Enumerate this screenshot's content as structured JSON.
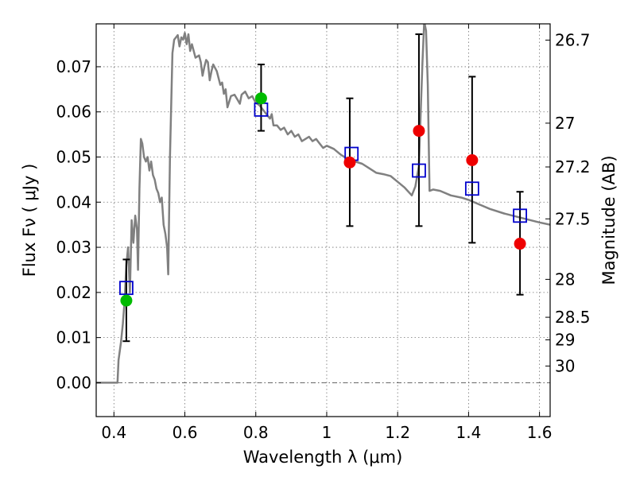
{
  "chart_data": {
    "type": "scatter",
    "xlabel": "Wavelength  λ (μm)",
    "ylabel": "Flux  Fν  ( μJy )",
    "y2label": "Magnitude (AB)",
    "xlim": [
      0.35,
      1.63
    ],
    "ylim": [
      -0.0075,
      0.0795
    ],
    "xticks": [
      0.4,
      0.6,
      0.8,
      1.0,
      1.2,
      1.4,
      1.6
    ],
    "xtick_labels": [
      "0.4",
      "0.6",
      "0.8",
      "1",
      "1.2",
      "1.4",
      "1.6"
    ],
    "yticks": [
      0.0,
      0.01,
      0.02,
      0.03,
      0.04,
      0.05,
      0.06,
      0.07
    ],
    "ytick_labels": [
      "0.00",
      "0.01",
      "0.02",
      "0.03",
      "0.04",
      "0.05",
      "0.06",
      "0.07"
    ],
    "y2ticks": [
      {
        "label": "26.7",
        "flux": 0.0759
      },
      {
        "label": "27",
        "flux": 0.0575
      },
      {
        "label": "27.2",
        "flux": 0.0478
      },
      {
        "label": "27.5",
        "flux": 0.0363
      },
      {
        "label": "28",
        "flux": 0.0229
      },
      {
        "label": "28.5",
        "flux": 0.0145
      },
      {
        "label": "29",
        "flux": 0.0095
      },
      {
        "label": "30",
        "flux": 0.0037
      }
    ],
    "grid": true,
    "colors": {
      "model": "#808080",
      "model_points": "#0000cc",
      "observed_detected": "#00bb00",
      "observed_other": "#ee0000",
      "errorbar": "#000000",
      "zero_line": "#555555"
    },
    "series": [
      {
        "kind": "line",
        "points": [
          [
            0.35,
            0.0
          ],
          [
            0.41,
            0.0
          ],
          [
            0.413,
            0.005
          ],
          [
            0.42,
            0.009
          ],
          [
            0.425,
            0.013
          ],
          [
            0.43,
            0.018
          ],
          [
            0.435,
            0.026
          ],
          [
            0.44,
            0.03
          ],
          [
            0.445,
            0.02
          ],
          [
            0.45,
            0.036
          ],
          [
            0.455,
            0.031
          ],
          [
            0.46,
            0.037
          ],
          [
            0.465,
            0.034
          ],
          [
            0.468,
            0.025
          ],
          [
            0.472,
            0.043
          ],
          [
            0.476,
            0.054
          ],
          [
            0.48,
            0.053
          ],
          [
            0.485,
            0.05
          ],
          [
            0.49,
            0.049
          ],
          [
            0.495,
            0.05
          ],
          [
            0.5,
            0.047
          ],
          [
            0.505,
            0.049
          ],
          [
            0.51,
            0.046
          ],
          [
            0.515,
            0.045
          ],
          [
            0.52,
            0.043
          ],
          [
            0.525,
            0.042
          ],
          [
            0.53,
            0.04
          ],
          [
            0.535,
            0.041
          ],
          [
            0.54,
            0.035
          ],
          [
            0.545,
            0.033
          ],
          [
            0.55,
            0.03
          ],
          [
            0.553,
            0.024
          ],
          [
            0.558,
            0.05
          ],
          [
            0.565,
            0.073
          ],
          [
            0.57,
            0.076
          ],
          [
            0.575,
            0.0765
          ],
          [
            0.58,
            0.077
          ],
          [
            0.585,
            0.0745
          ],
          [
            0.59,
            0.0765
          ],
          [
            0.595,
            0.076
          ],
          [
            0.6,
            0.0775
          ],
          [
            0.605,
            0.075
          ],
          [
            0.61,
            0.0772
          ],
          [
            0.615,
            0.0735
          ],
          [
            0.62,
            0.075
          ],
          [
            0.63,
            0.072
          ],
          [
            0.64,
            0.0725
          ],
          [
            0.645,
            0.071
          ],
          [
            0.65,
            0.068
          ],
          [
            0.655,
            0.07
          ],
          [
            0.66,
            0.0715
          ],
          [
            0.665,
            0.071
          ],
          [
            0.67,
            0.067
          ],
          [
            0.675,
            0.069
          ],
          [
            0.68,
            0.0705
          ],
          [
            0.69,
            0.069
          ],
          [
            0.7,
            0.066
          ],
          [
            0.705,
            0.0665
          ],
          [
            0.71,
            0.064
          ],
          [
            0.715,
            0.065
          ],
          [
            0.72,
            0.061
          ],
          [
            0.73,
            0.0635
          ],
          [
            0.74,
            0.0638
          ],
          [
            0.75,
            0.0625
          ],
          [
            0.755,
            0.0618
          ],
          [
            0.76,
            0.0638
          ],
          [
            0.77,
            0.0645
          ],
          [
            0.78,
            0.063
          ],
          [
            0.79,
            0.0635
          ],
          [
            0.8,
            0.062
          ],
          [
            0.81,
            0.0615
          ],
          [
            0.82,
            0.0605
          ],
          [
            0.83,
            0.0595
          ],
          [
            0.84,
            0.0585
          ],
          [
            0.845,
            0.0595
          ],
          [
            0.85,
            0.057
          ],
          [
            0.86,
            0.057
          ],
          [
            0.87,
            0.056
          ],
          [
            0.88,
            0.0565
          ],
          [
            0.89,
            0.055
          ],
          [
            0.9,
            0.0558
          ],
          [
            0.91,
            0.0545
          ],
          [
            0.92,
            0.055
          ],
          [
            0.93,
            0.0535
          ],
          [
            0.94,
            0.054
          ],
          [
            0.95,
            0.0545
          ],
          [
            0.96,
            0.0535
          ],
          [
            0.97,
            0.054
          ],
          [
            0.98,
            0.053
          ],
          [
            0.99,
            0.052
          ],
          [
            1.0,
            0.0525
          ],
          [
            1.02,
            0.0518
          ],
          [
            1.04,
            0.0505
          ],
          [
            1.06,
            0.0495
          ],
          [
            1.08,
            0.049
          ],
          [
            1.1,
            0.0485
          ],
          [
            1.12,
            0.0475
          ],
          [
            1.14,
            0.0465
          ],
          [
            1.16,
            0.0462
          ],
          [
            1.18,
            0.0458
          ],
          [
            1.2,
            0.0445
          ],
          [
            1.22,
            0.0432
          ],
          [
            1.24,
            0.0415
          ],
          [
            1.25,
            0.0435
          ],
          [
            1.26,
            0.048
          ],
          [
            1.265,
            0.06
          ],
          [
            1.27,
            0.071
          ],
          [
            1.275,
            0.08
          ],
          [
            1.28,
            0.078
          ],
          [
            1.285,
            0.066
          ],
          [
            1.29,
            0.0425
          ],
          [
            1.3,
            0.0428
          ],
          [
            1.32,
            0.0425
          ],
          [
            1.35,
            0.0415
          ],
          [
            1.38,
            0.041
          ],
          [
            1.4,
            0.0405
          ],
          [
            1.43,
            0.0395
          ],
          [
            1.46,
            0.0385
          ],
          [
            1.5,
            0.0375
          ],
          [
            1.55,
            0.0365
          ],
          [
            1.6,
            0.0355
          ],
          [
            1.63,
            0.035
          ]
        ]
      },
      {
        "kind": "model-points",
        "points": [
          [
            0.435,
            0.021
          ],
          [
            0.815,
            0.0605
          ],
          [
            1.07,
            0.0507
          ],
          [
            1.26,
            0.047
          ],
          [
            1.41,
            0.043
          ],
          [
            1.545,
            0.037
          ]
        ]
      },
      {
        "kind": "observed",
        "points": [
          {
            "x": 0.435,
            "y": 0.0182,
            "err_low": 0.0092,
            "err_high": 0.0273,
            "detected": true
          },
          {
            "x": 0.815,
            "y": 0.063,
            "err_low": 0.0558,
            "err_high": 0.0705,
            "detected": true
          },
          {
            "x": 1.065,
            "y": 0.0488,
            "err_low": 0.0347,
            "err_high": 0.063,
            "detected": false
          },
          {
            "x": 1.26,
            "y": 0.0558,
            "err_low": 0.0347,
            "err_high": 0.0772,
            "detected": false
          },
          {
            "x": 1.41,
            "y": 0.0493,
            "err_low": 0.031,
            "err_high": 0.0678,
            "detected": false
          },
          {
            "x": 1.545,
            "y": 0.0308,
            "err_low": 0.0195,
            "err_high": 0.0423,
            "detected": false
          }
        ]
      }
    ]
  }
}
